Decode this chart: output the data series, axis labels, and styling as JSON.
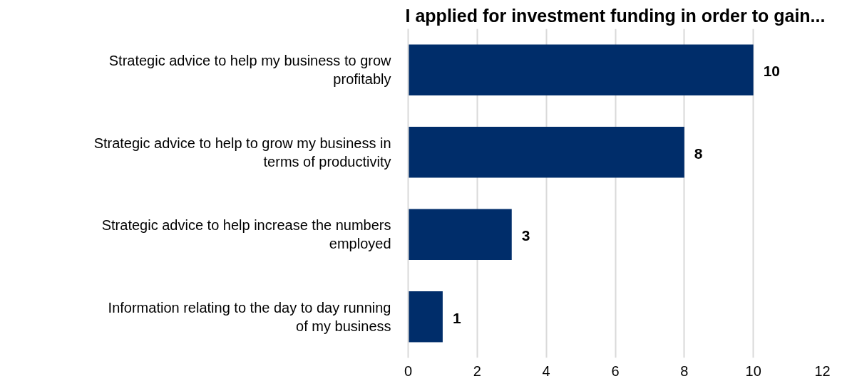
{
  "chart_data": {
    "type": "bar",
    "orientation": "horizontal",
    "title": "I applied for investment funding in order to gain...",
    "categories": [
      "Strategic advice to help my business to grow profitably",
      "Strategic advice to help to grow my business in terms of productivity",
      "Strategic advice to help increase the numbers employed",
      "Information relating to the day to day running of my business"
    ],
    "values": [
      10,
      8,
      3,
      1
    ],
    "color": "#002d6a",
    "xlim": [
      0,
      12
    ],
    "xticks": [
      0,
      2,
      4,
      6,
      8,
      10,
      12
    ],
    "grid": "x",
    "data_labels": true
  }
}
